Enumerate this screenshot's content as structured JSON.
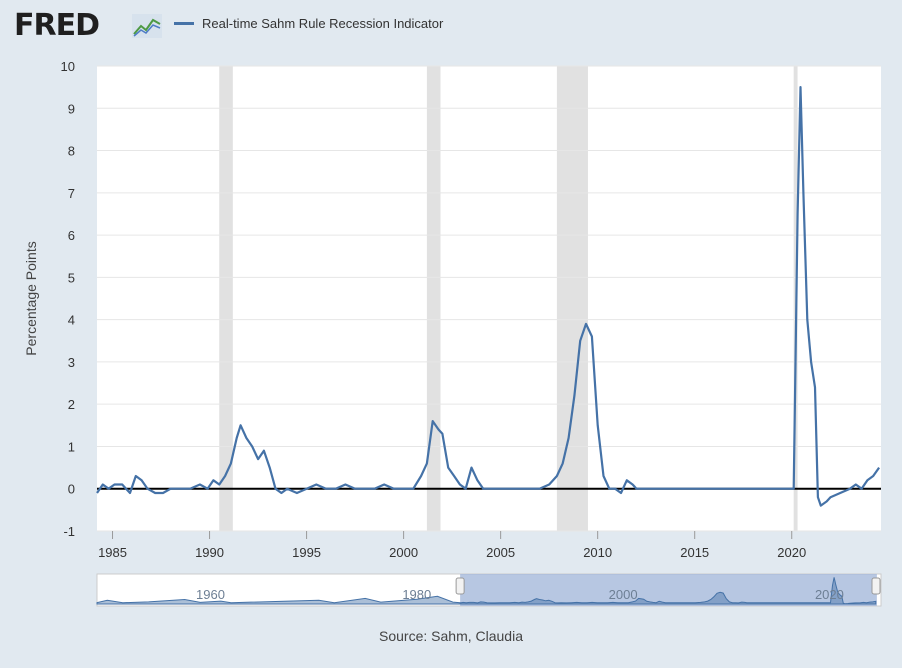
{
  "header": {
    "logo_text": "FRED",
    "logo_mark_icon": "fred-chart-logo-icon",
    "legend_label": "Real-time Sahm Rule Recession Indicator"
  },
  "source_text": "Source: Sahm, Claudia",
  "colors": {
    "series": "#4572a7",
    "recession": "#e1e1e1",
    "zero_line": "#000000",
    "page_bg": "#e1e9f0",
    "navigator_mask": "#9fb4d8"
  },
  "chart_data": {
    "type": "line",
    "title": "",
    "xlabel": "",
    "ylabel": "Percentage Points",
    "xlim": [
      1984.2,
      2024.6
    ],
    "ylim": [
      -1,
      10
    ],
    "yticks": [
      -1,
      0,
      1,
      2,
      3,
      4,
      5,
      6,
      7,
      8,
      9,
      10
    ],
    "xticks": [
      1985,
      1990,
      1995,
      2000,
      2005,
      2010,
      2015,
      2020
    ],
    "grid": true,
    "legend_placement": "top-left",
    "recessions": [
      [
        1990.5,
        1991.2
      ],
      [
        2001.2,
        2001.9
      ],
      [
        2007.9,
        2009.5
      ],
      [
        2020.1,
        2020.3
      ]
    ],
    "series": [
      {
        "name": "Real-time Sahm Rule Recession Indicator",
        "x": [
          1984.2,
          1984.5,
          1984.8,
          1985.1,
          1985.5,
          1985.9,
          1986.2,
          1986.5,
          1986.8,
          1987.2,
          1987.6,
          1988.0,
          1988.5,
          1989.0,
          1989.5,
          1989.9,
          1990.2,
          1990.5,
          1990.8,
          1991.1,
          1991.4,
          1991.6,
          1991.9,
          1992.2,
          1992.5,
          1992.8,
          1993.1,
          1993.4,
          1993.7,
          1994.0,
          1994.5,
          1995.0,
          1995.5,
          1996.0,
          1996.5,
          1997.0,
          1997.5,
          1998.0,
          1998.5,
          1999.0,
          1999.5,
          2000.0,
          2000.5,
          2000.9,
          2001.2,
          2001.5,
          2001.8,
          2002.0,
          2002.3,
          2002.6,
          2002.9,
          2003.2,
          2003.5,
          2003.8,
          2004.1,
          2004.5,
          2005.0,
          2005.5,
          2006.0,
          2006.5,
          2007.0,
          2007.5,
          2007.9,
          2008.2,
          2008.5,
          2008.8,
          2009.1,
          2009.4,
          2009.7,
          2010.0,
          2010.3,
          2010.6,
          2010.9,
          2011.2,
          2011.5,
          2011.8,
          2012.0,
          2012.5,
          2013.0,
          2013.5,
          2014.0,
          2014.5,
          2015.0,
          2015.5,
          2016.0,
          2016.5,
          2017.0,
          2017.5,
          2018.0,
          2018.5,
          2019.0,
          2019.5,
          2019.9,
          2020.1,
          2020.3,
          2020.45,
          2020.6,
          2020.8,
          2021.0,
          2021.2,
          2021.35,
          2021.5,
          2021.8,
          2022.0,
          2022.5,
          2023.0,
          2023.3,
          2023.6,
          2023.9,
          2024.2,
          2024.5
        ],
        "values": [
          -0.1,
          0.1,
          0.0,
          0.1,
          0.1,
          -0.1,
          0.3,
          0.2,
          0.0,
          -0.1,
          -0.1,
          0.0,
          0.0,
          0.0,
          0.1,
          0.0,
          0.2,
          0.1,
          0.3,
          0.6,
          1.2,
          1.5,
          1.2,
          1.0,
          0.7,
          0.9,
          0.5,
          0.0,
          -0.1,
          0.0,
          -0.1,
          0.0,
          0.1,
          0.0,
          0.0,
          0.1,
          0.0,
          0.0,
          0.0,
          0.1,
          0.0,
          0.0,
          0.0,
          0.3,
          0.6,
          1.6,
          1.4,
          1.3,
          0.5,
          0.3,
          0.1,
          0.0,
          0.5,
          0.2,
          0.0,
          0.0,
          0.0,
          0.0,
          0.0,
          0.0,
          0.0,
          0.1,
          0.3,
          0.6,
          1.2,
          2.2,
          3.5,
          3.9,
          3.6,
          1.5,
          0.3,
          0.0,
          0.0,
          -0.1,
          0.2,
          0.1,
          0.0,
          0.0,
          0.0,
          0.0,
          0.0,
          0.0,
          0.0,
          0.0,
          0.0,
          0.0,
          0.0,
          0.0,
          0.0,
          0.0,
          0.0,
          0.0,
          0.0,
          0.0,
          6.5,
          9.5,
          7.0,
          4.0,
          3.0,
          2.4,
          -0.2,
          -0.4,
          -0.3,
          -0.2,
          -0.1,
          0.0,
          0.1,
          0.0,
          0.2,
          0.3,
          0.5
        ]
      }
    ],
    "navigator": {
      "xlim": [
        1949,
        2025
      ],
      "labels": [
        "1960",
        "1980",
        "2000",
        "2020"
      ],
      "selected_range": [
        1984.2,
        2024.6
      ]
    }
  }
}
